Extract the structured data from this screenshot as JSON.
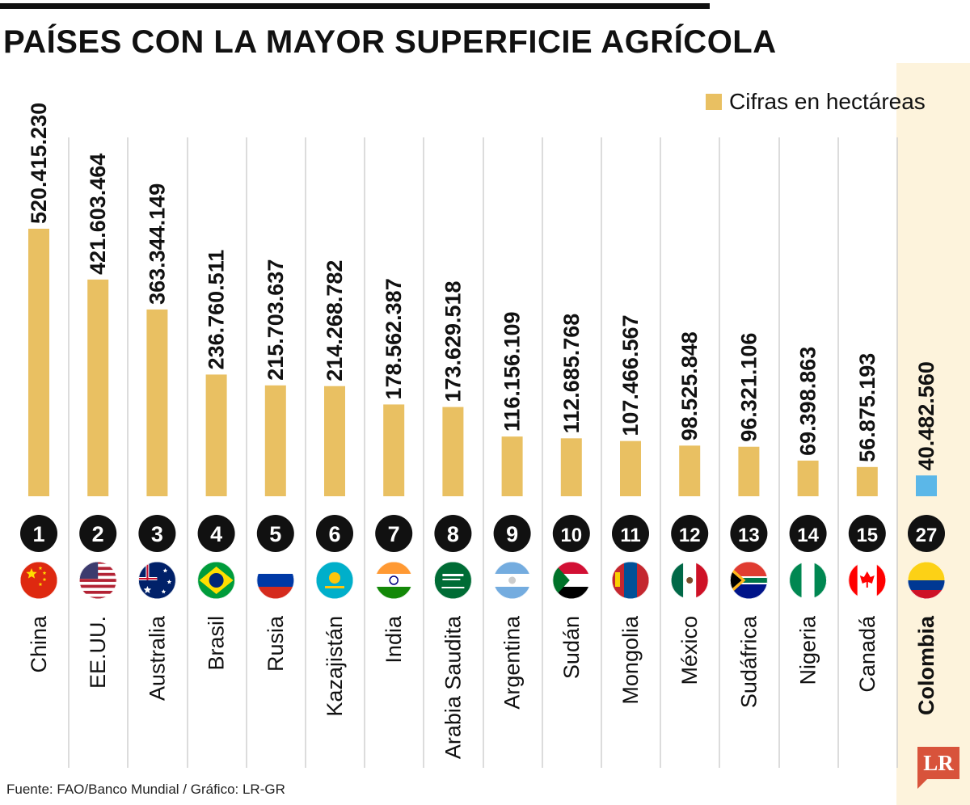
{
  "title": "PAÍSES CON LA MAYOR SUPERFICIE AGRÍCOLA",
  "legend": "Cifras en hectáreas",
  "source": "Fuente: FAO/Banco Mundial / Gráfico: LR-GR",
  "logo": "LR",
  "colors": {
    "bar": "#e9c062",
    "highlight_bar": "#5bb7e8",
    "highlight_bg": "#fdf3dc",
    "logo": "#d8533b"
  },
  "chart_data": {
    "type": "bar",
    "unit": "hectáreas",
    "categories": [
      "China",
      "EE.UU.",
      "Australia",
      "Brasil",
      "Rusia",
      "Kazajistán",
      "India",
      "Arabia Saudita",
      "Argentina",
      "Sudán",
      "Mongolia",
      "México",
      "Sudáfrica",
      "Nigeria",
      "Canadá",
      "Colombia"
    ],
    "ranks": [
      "1",
      "2",
      "3",
      "4",
      "5",
      "6",
      "7",
      "8",
      "9",
      "10",
      "11",
      "12",
      "13",
      "14",
      "15",
      "27"
    ],
    "values": [
      520415230,
      421603464,
      363344149,
      236760511,
      215703637,
      214268782,
      178562387,
      173629518,
      116156109,
      112685768,
      107466567,
      98525848,
      96321106,
      69398863,
      56875193,
      40482560
    ],
    "value_labels": [
      "520.415.230",
      "421.603.464",
      "363.344.149",
      "236.760.511",
      "215.703.637",
      "214.268.782",
      "178.562.387",
      "173.629.518",
      "116.156.109",
      "112.685.768",
      "107.466.567",
      "98.525.848",
      "96.321.106",
      "69.398.863",
      "56.875.193",
      "40.482.560"
    ],
    "flags": [
      "china-flag",
      "usa-flag",
      "australia-flag",
      "brazil-flag",
      "russia-flag",
      "kazakhstan-flag",
      "india-flag",
      "saudi-arabia-flag",
      "argentina-flag",
      "sudan-flag",
      "mongolia-flag",
      "mexico-flag",
      "south-africa-flag",
      "nigeria-flag",
      "canada-flag",
      "colombia-flag"
    ],
    "highlight": "Colombia"
  }
}
